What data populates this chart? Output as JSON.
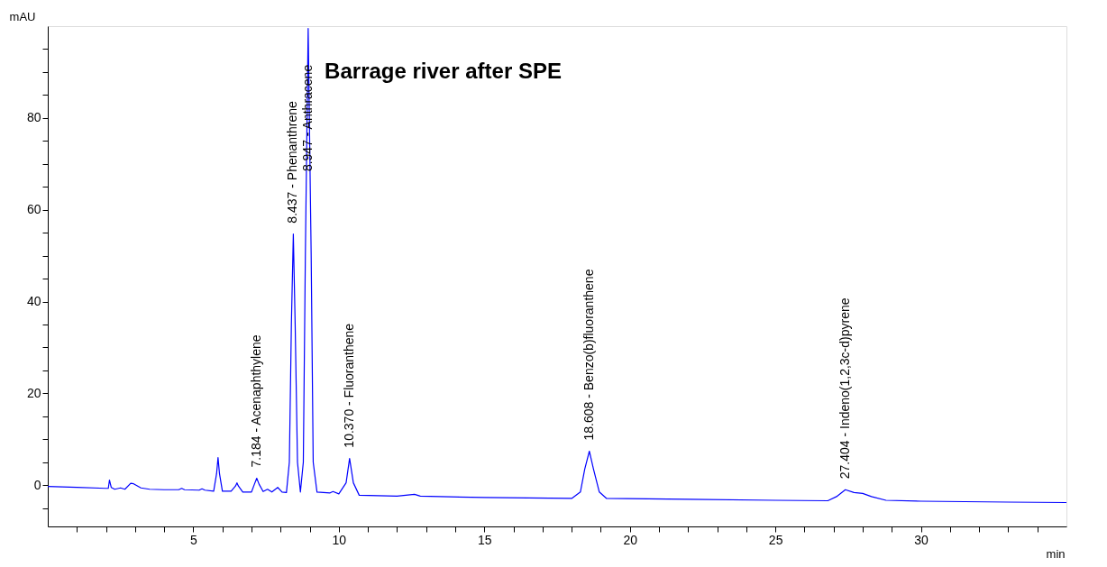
{
  "chart_data": {
    "type": "line",
    "title": "Barrage river after SPE",
    "xlabel": "min",
    "ylabel": "mAU",
    "xlim": [
      0,
      35
    ],
    "ylim": [
      -9,
      100
    ],
    "xticks": [
      {
        "value": 1,
        "label": null
      },
      {
        "value": 2,
        "label": null
      },
      {
        "value": 3,
        "label": null
      },
      {
        "value": 4,
        "label": null
      },
      5,
      {
        "value": 6,
        "label": null
      },
      {
        "value": 7,
        "label": null
      },
      {
        "value": 8,
        "label": null
      },
      {
        "value": 9,
        "label": null
      },
      10,
      {
        "value": 11,
        "label": null
      },
      {
        "value": 12,
        "label": null
      },
      {
        "value": 13,
        "label": null
      },
      {
        "value": 14,
        "label": null
      },
      15,
      {
        "value": 16,
        "label": null
      },
      {
        "value": 17,
        "label": null
      },
      {
        "value": 18,
        "label": null
      },
      {
        "value": 19,
        "label": null
      },
      20,
      {
        "value": 21,
        "label": null
      },
      {
        "value": 22,
        "label": null
      },
      {
        "value": 23,
        "label": null
      },
      {
        "value": 24,
        "label": null
      },
      25,
      {
        "value": 26,
        "label": null
      },
      {
        "value": 27,
        "label": null
      },
      {
        "value": 28,
        "label": null
      },
      {
        "value": 29,
        "label": null
      },
      30,
      {
        "value": 31,
        "label": null
      },
      {
        "value": 32,
        "label": null
      },
      {
        "value": 33,
        "label": null
      },
      {
        "value": 34,
        "label": null
      }
    ],
    "yticks": [
      {
        "value": -5,
        "label": null
      },
      0,
      {
        "value": 5,
        "label": null
      },
      {
        "value": 10,
        "label": null
      },
      {
        "value": 15,
        "label": null
      },
      20,
      {
        "value": 25,
        "label": null
      },
      {
        "value": 30,
        "label": null
      },
      {
        "value": 35,
        "label": null
      },
      40,
      {
        "value": 45,
        "label": null
      },
      {
        "value": 50,
        "label": null
      },
      {
        "value": 55,
        "label": null
      },
      60,
      {
        "value": 65,
        "label": null
      },
      {
        "value": 70,
        "label": null
      },
      {
        "value": 75,
        "label": null
      },
      80,
      {
        "value": 85,
        "label": null
      },
      {
        "value": 90,
        "label": null
      },
      {
        "value": 95,
        "label": null
      }
    ],
    "grid": false,
    "marker": "none",
    "line_style": "solid",
    "series": [
      {
        "color": "#0000ff",
        "x": [
          0,
          1,
          2,
          2.08,
          2.12,
          2.18,
          2.3,
          2.5,
          2.65,
          2.85,
          2.95,
          3.2,
          3.5,
          4.0,
          4.5,
          4.6,
          4.7,
          5.2,
          5.3,
          5.4,
          5.7,
          5.8,
          5.85,
          5.9,
          6.0,
          6.3,
          6.45,
          6.5,
          6.55,
          6.7,
          7.0,
          7.1,
          7.18,
          7.26,
          7.4,
          7.55,
          7.7,
          7.9,
          8.05,
          8.2,
          8.3,
          8.37,
          8.437,
          8.5,
          8.58,
          8.68,
          8.78,
          8.85,
          8.947,
          9.05,
          9.12,
          9.25,
          9.7,
          9.8,
          10.0,
          10.25,
          10.37,
          10.5,
          10.7,
          12.0,
          12.6,
          12.8,
          15,
          18.0,
          18.3,
          18.45,
          18.608,
          18.75,
          18.95,
          19.2,
          22,
          25,
          26.8,
          27.1,
          27.404,
          27.7,
          28.0,
          28.3,
          28.8,
          30,
          33,
          35
        ],
        "values": [
          -0.3,
          -0.5,
          -0.7,
          -0.7,
          1.1,
          -0.5,
          -0.9,
          -0.6,
          -0.9,
          0.4,
          0.3,
          -0.6,
          -0.9,
          -1.0,
          -1.0,
          -0.7,
          -1.0,
          -1.1,
          -0.8,
          -1.1,
          -1.3,
          2.5,
          6.0,
          2.5,
          -1.3,
          -1.3,
          -0.2,
          0.5,
          -0.2,
          -1.5,
          -1.5,
          0.2,
          1.5,
          0.2,
          -1.4,
          -0.9,
          -1.5,
          -0.5,
          -1.5,
          -1.6,
          5,
          35,
          54.7,
          35,
          5,
          -1.5,
          5,
          50,
          99.5,
          50,
          5,
          -1.5,
          -1.7,
          -1.4,
          -1.9,
          0.5,
          5.8,
          0.5,
          -2.2,
          -2.4,
          -2.0,
          -2.4,
          -2.7,
          -2.9,
          -1.5,
          3.5,
          7.4,
          3.5,
          -1.5,
          -2.9,
          -3.1,
          -3.3,
          -3.4,
          -2.5,
          -1.0,
          -1.6,
          -1.8,
          -2.5,
          -3.3,
          -3.5,
          -3.7,
          -3.8
        ]
      }
    ],
    "annotations": [
      {
        "text": "7.184 -  Acenaphthylene",
        "x": 7.184,
        "y": 1.5
      },
      {
        "text": "8.437 -  Phenanthrene",
        "x": 8.437,
        "y": 54.7
      },
      {
        "text": "8.947 -  Anthracene",
        "x": 8.947,
        "y": 66
      },
      {
        "text": "10.370 -  Fluoranthene",
        "x": 10.37,
        "y": 5.8
      },
      {
        "text": "18.608 -  Benzo(b)fluoranthene",
        "x": 18.608,
        "y": 7.4
      },
      {
        "text": "27.404 -  Indeno(1,2,3c-d)pyrene",
        "x": 27.404,
        "y": -1.0
      }
    ]
  }
}
